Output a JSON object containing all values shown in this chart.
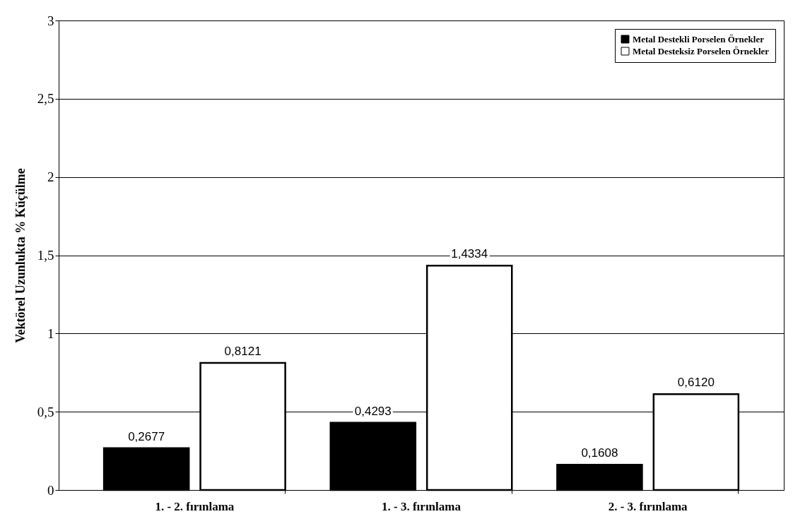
{
  "chart_data": {
    "type": "bar",
    "ylabel": "Vektörel Uzunlukta % Küçülme",
    "categories": [
      "1. - 2. fırınlama",
      "1. - 3. fırınlama",
      "2. - 3. fırınlama"
    ],
    "series": [
      {
        "name": "Metal Destekli Porselen Örnekler",
        "color": "#000000",
        "values": [
          0.2677,
          0.4293,
          0.1608
        ],
        "value_labels": [
          "0,2677",
          "0,4293",
          "0,1608"
        ]
      },
      {
        "name": "Metal Desteksiz Porselen Örnekler",
        "color": "#ffffff",
        "values": [
          0.8121,
          1.4334,
          0.612
        ],
        "value_labels": [
          "0,8121",
          "1,4334",
          "0,6120"
        ]
      }
    ],
    "ylim": [
      0,
      3
    ],
    "yticks": [
      0,
      {
        "value": 0.5,
        "label": "0,5"
      },
      1,
      {
        "value": 1.5,
        "label": "1,5"
      },
      2,
      {
        "value": 2.5,
        "label": "2,5"
      },
      3
    ],
    "grid": "y",
    "legend": "top right"
  }
}
